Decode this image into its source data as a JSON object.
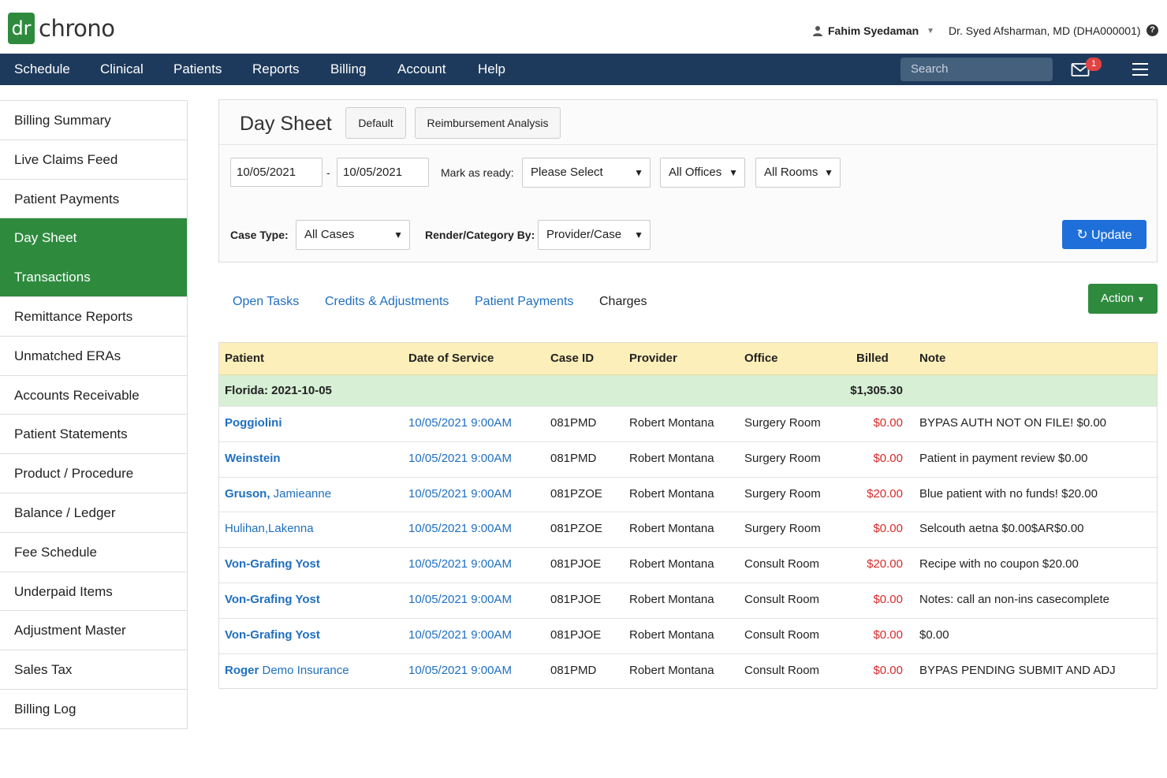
{
  "brand": {
    "logo_mark": "dr",
    "logo_text": "chrono",
    "accent": "#2e8b3e",
    "nav_color": "#1d3a5c"
  },
  "header": {
    "user_name": "Fahim Syedaman",
    "doctor": "Dr. Syed Afsharman, MD (DHA000001)",
    "help_glyph": "?"
  },
  "nav": {
    "items": [
      "Schedule",
      "Clinical",
      "Patients",
      "Reports",
      "Billing",
      "Account",
      "Help"
    ],
    "search_placeholder": "Search",
    "mail_badge": "1"
  },
  "sidebar": {
    "items": [
      "Billing Summary",
      "Live Claims Feed",
      "Patient Payments",
      "Day Sheet",
      "Transactions",
      "Remittance Reports",
      "Unmatched ERAs",
      "Accounts Receivable",
      "Patient Statements",
      "Product / Procedure",
      "Balance / Ledger",
      "Fee Schedule",
      "Underpaid Items",
      "Adjustment Master",
      "Sales Tax",
      "Billing Log"
    ],
    "active": [
      "Day Sheet",
      "Transactions"
    ]
  },
  "panel": {
    "title": "Day Sheet",
    "btn_default": "Default",
    "btn_reimbursement": "Reimbursement Analysis",
    "date_from": "10/05/2021",
    "date_sep": "-",
    "date_to": "10/05/2021",
    "mark_ready_label": "Mark as ready:",
    "mark_ready_value": "Please Select",
    "offices_value": "All Offices",
    "rooms_value": "All Rooms",
    "case_type_label": "Case Type:",
    "case_type_value": "All Cases",
    "render_label": "Render/Category By:",
    "render_value": "Provider/Case",
    "update_label": "Update"
  },
  "tabs": {
    "items": [
      "Open Tasks",
      "Credits & Adjustments",
      "Patient Payments",
      "Charges"
    ],
    "current": "Charges",
    "action_label": "Action"
  },
  "table": {
    "columns": [
      "Patient",
      "Date of Service",
      "Case ID",
      "Provider",
      "Office",
      "Billed",
      "Note"
    ],
    "group": {
      "label": "Florida: 2021-10-05",
      "billed": "$1,305.30"
    },
    "rows": [
      {
        "patient_bold": "Poggiolini",
        "patient_rest": "",
        "date": "10/05/2021 9:00AM",
        "case_id": "081PMD",
        "provider": "Robert Montana",
        "office": "Surgery Room",
        "billed": "$0.00",
        "note": "BYPAS AUTH NOT ON FILE! $0.00"
      },
      {
        "patient_bold": "Weinstein",
        "patient_rest": "",
        "date": "10/05/2021 9:00AM",
        "case_id": "081PMD",
        "provider": "Robert Montana",
        "office": "Surgery Room",
        "billed": "$0.00",
        "note": "Patient in payment review $0.00"
      },
      {
        "patient_bold": "Gruson,",
        "patient_rest": " Jamieanne",
        "date": "10/05/2021 9:00AM",
        "case_id": "081PZOE",
        "provider": "Robert Montana",
        "office": "Surgery Room",
        "billed": "$20.00",
        "note": "Blue patient with no funds! $20.00"
      },
      {
        "patient_bold": "",
        "patient_rest": "Hulihan,Lakenna",
        "date": "10/05/2021 9:00AM",
        "case_id": "081PZOE",
        "provider": "Robert Montana",
        "office": "Surgery Room",
        "billed": "$0.00",
        "note": "Selcouth aetna $0.00$AR$0.00"
      },
      {
        "patient_bold": "Von-Grafing Yost",
        "patient_rest": "",
        "date": "10/05/2021 9:00AM",
        "case_id": "081PJOE",
        "provider": "Robert Montana",
        "office": "Consult Room",
        "billed": "$20.00",
        "note": "Recipe with no coupon $20.00"
      },
      {
        "patient_bold": "Von-Grafing Yost",
        "patient_rest": "",
        "date": "10/05/2021 9:00AM",
        "case_id": "081PJOE",
        "provider": "Robert Montana",
        "office": "Consult Room",
        "billed": "$0.00",
        "note": "Notes: call an non-ins casecomplete"
      },
      {
        "patient_bold": "Von-Grafing Yost",
        "patient_rest": "",
        "date": "10/05/2021 9:00AM",
        "case_id": "081PJOE",
        "provider": "Robert Montana",
        "office": "Consult Room",
        "billed": "$0.00",
        "note": "$0.00"
      },
      {
        "patient_bold": "Roger",
        "patient_rest": " Demo Insurance",
        "date": "10/05/2021 9:00AM",
        "case_id": "081PMD",
        "provider": "Robert Montana",
        "office": "Consult Room",
        "billed": "$0.00",
        "note": "BYPAS PENDING SUBMIT AND ADJ"
      }
    ]
  }
}
